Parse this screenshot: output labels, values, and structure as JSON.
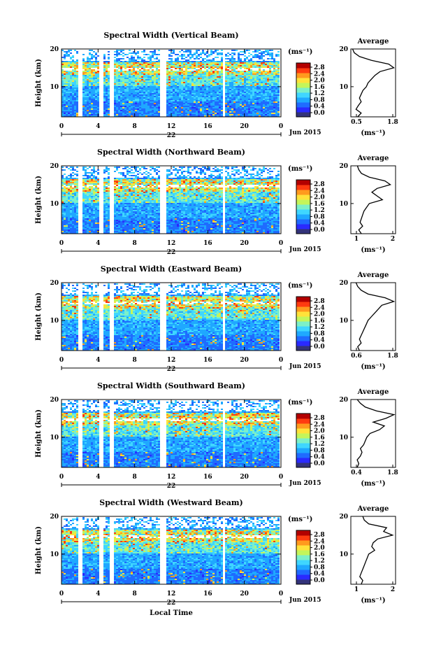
{
  "figure": {
    "xlabel": "Local Time",
    "date_label": "Jun 2015",
    "day_label": "22",
    "ylabel": "Height (km)",
    "unit_label": "(ms⁻¹)",
    "average_title": "Average",
    "average_xlabel": "(ms⁻¹)",
    "x_ticks": [
      "0",
      "4",
      "8",
      "12",
      "16",
      "20",
      "0"
    ],
    "y_ticks": [
      "20",
      "10"
    ],
    "colorbar_ticks": [
      "2.8",
      "2.4",
      "2.0",
      "1.6",
      "1.2",
      "0.8",
      "0.4",
      "0.0"
    ],
    "colorbar_colors": [
      "#33337a",
      "#2a2aff",
      "#1f6bff",
      "#1fa8ff",
      "#3fd6ff",
      "#7cf0c8",
      "#c4f55a",
      "#ffe23a",
      "#ff9a1e",
      "#ff3b10",
      "#b30000"
    ]
  },
  "chart_data": [
    {
      "type": "heatmap",
      "title": "Spectral Width (Vertical Beam)",
      "xlabel": "",
      "ylabel": "Height (km)",
      "xlim": [
        0,
        24
      ],
      "ylim": [
        2,
        20
      ],
      "colorbar_range": [
        0.0,
        2.8
      ],
      "data_gaps_hours": [
        [
          1.9,
          2.4
        ],
        [
          4.1,
          4.6
        ],
        [
          5.3,
          5.8
        ],
        [
          10.8,
          11.4
        ],
        [
          17.7,
          17.9
        ]
      ],
      "average": {
        "xlim": [
          0.5,
          1.8
        ],
        "xticks": [
          "0.5",
          "1.8"
        ],
        "height_km": [
          2,
          3,
          4,
          5,
          6,
          7,
          8,
          9,
          10,
          11,
          12,
          13,
          14,
          15,
          16,
          17,
          18,
          19,
          20
        ],
        "value": [
          0.7,
          0.8,
          0.65,
          0.72,
          0.8,
          0.75,
          0.8,
          0.85,
          0.95,
          1.0,
          1.1,
          1.2,
          1.35,
          1.75,
          1.6,
          1.1,
          0.75,
          0.6,
          0.55
        ]
      }
    },
    {
      "type": "heatmap",
      "title": "Spectral Width (Northward Beam)",
      "xlabel": "",
      "ylabel": "Height (km)",
      "xlim": [
        0,
        24
      ],
      "ylim": [
        2,
        20
      ],
      "colorbar_range": [
        0.0,
        2.8
      ],
      "data_gaps_hours": [
        [
          1.9,
          2.4
        ],
        [
          4.1,
          4.6
        ],
        [
          5.3,
          5.8
        ],
        [
          10.8,
          11.4
        ],
        [
          17.7,
          17.9
        ]
      ],
      "average": {
        "xlim": [
          0.5,
          2.2
        ],
        "xticks": [
          "1",
          "2"
        ],
        "height_km": [
          2,
          3,
          4,
          5,
          6,
          7,
          8,
          9,
          10,
          11,
          12,
          13,
          14,
          15,
          16,
          17,
          18,
          19,
          20
        ],
        "value": [
          0.9,
          0.8,
          0.95,
          0.85,
          0.9,
          0.95,
          1.0,
          1.1,
          1.2,
          1.7,
          1.5,
          1.3,
          1.5,
          2.0,
          1.8,
          1.2,
          0.9,
          0.8,
          0.75
        ]
      }
    },
    {
      "type": "heatmap",
      "title": "Spectral Width (Eastward Beam)",
      "xlabel": "",
      "ylabel": "Height (km)",
      "xlim": [
        0,
        24
      ],
      "ylim": [
        2,
        20
      ],
      "colorbar_range": [
        0.0,
        2.8
      ],
      "data_gaps_hours": [
        [
          1.9,
          2.4
        ],
        [
          4.1,
          4.6
        ],
        [
          5.3,
          5.8
        ],
        [
          10.8,
          11.4
        ],
        [
          17.7,
          17.9
        ]
      ],
      "average": {
        "xlim": [
          0.5,
          1.8
        ],
        "xticks": [
          "0.6",
          "1.8"
        ],
        "height_km": [
          2,
          3,
          4,
          5,
          6,
          7,
          8,
          9,
          10,
          11,
          12,
          13,
          14,
          15,
          16,
          17,
          18,
          19,
          20
        ],
        "value": [
          0.75,
          0.7,
          0.8,
          0.75,
          0.8,
          0.85,
          0.9,
          0.95,
          1.0,
          1.1,
          1.2,
          1.3,
          1.4,
          1.75,
          1.5,
          1.0,
          0.8,
          0.7,
          0.65
        ]
      }
    },
    {
      "type": "heatmap",
      "title": "Spectral Width (Southward Beam)",
      "xlabel": "",
      "ylabel": "Height (km)",
      "xlim": [
        0,
        24
      ],
      "ylim": [
        2,
        20
      ],
      "colorbar_range": [
        0.0,
        2.8
      ],
      "data_gaps_hours": [
        [
          1.9,
          2.4
        ],
        [
          4.1,
          4.6
        ],
        [
          5.3,
          5.8
        ],
        [
          10.8,
          11.4
        ],
        [
          17.7,
          17.9
        ]
      ],
      "average": {
        "xlim": [
          0.4,
          1.8
        ],
        "xticks": [
          "0.4",
          "1.8"
        ],
        "height_km": [
          2,
          3,
          4,
          5,
          6,
          7,
          8,
          9,
          10,
          11,
          12,
          13,
          14,
          15,
          16,
          17,
          18,
          19,
          20
        ],
        "value": [
          0.6,
          0.65,
          0.6,
          0.7,
          0.75,
          0.7,
          0.8,
          0.85,
          0.9,
          1.0,
          1.3,
          1.45,
          1.1,
          1.5,
          1.75,
          1.2,
          0.85,
          0.7,
          0.6
        ]
      }
    },
    {
      "type": "heatmap",
      "title": "Spectral Width (Westward Beam)",
      "xlabel": "Local Time",
      "ylabel": "Height (km)",
      "xlim": [
        0,
        24
      ],
      "ylim": [
        2,
        20
      ],
      "colorbar_range": [
        0.0,
        2.8
      ],
      "data_gaps_hours": [
        [
          1.9,
          2.4
        ],
        [
          4.1,
          4.6
        ],
        [
          5.3,
          5.8
        ],
        [
          10.8,
          11.4
        ],
        [
          17.7,
          17.9
        ]
      ],
      "average": {
        "xlim": [
          0.5,
          2.0
        ],
        "xticks": [
          "1",
          "2"
        ],
        "height_km": [
          2,
          3,
          4,
          5,
          6,
          7,
          8,
          9,
          10,
          11,
          12,
          13,
          14,
          15,
          16,
          17,
          18,
          19,
          20
        ],
        "value": [
          0.85,
          0.9,
          0.8,
          0.85,
          0.9,
          0.95,
          1.0,
          1.05,
          1.1,
          1.3,
          1.2,
          1.25,
          1.4,
          1.9,
          1.6,
          1.7,
          1.1,
          0.95,
          0.9
        ]
      }
    }
  ]
}
